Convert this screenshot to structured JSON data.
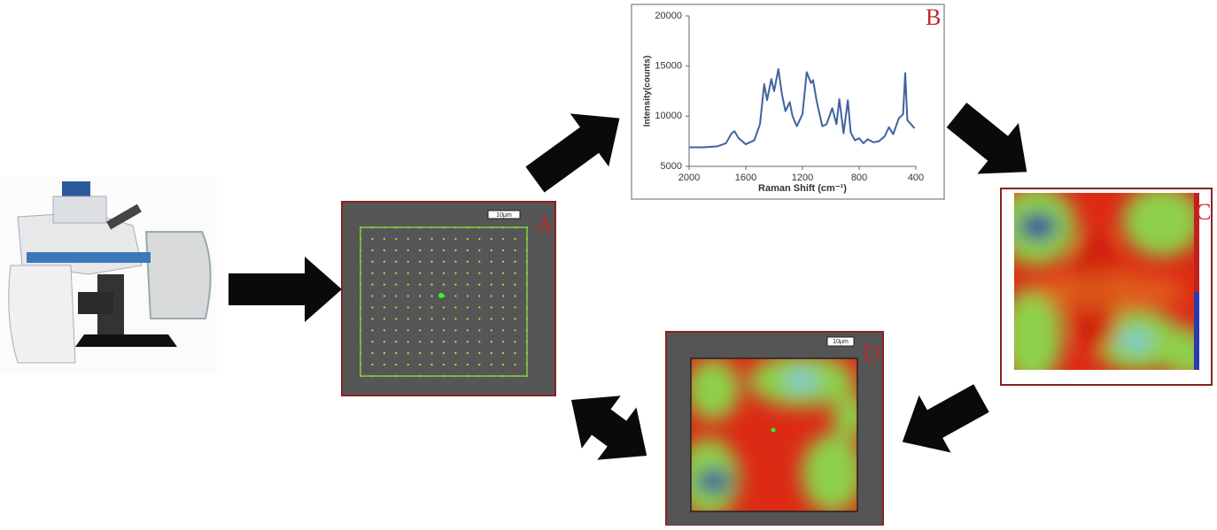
{
  "panels": {
    "a": {
      "label": "A",
      "scale_bar": "10µm"
    },
    "b": {
      "label": "B",
      "chart": {
        "type": "line",
        "xlabel": "Raman Shift (cm⁻¹)",
        "ylabel": "Intensity(counts)",
        "xlim": [
          2000,
          400
        ],
        "ylim": [
          5000,
          20000
        ],
        "xticks": [
          2000,
          1600,
          1200,
          800,
          400
        ],
        "yticks": [
          5000,
          10000,
          15000,
          20000
        ],
        "color": "#3f63a0",
        "x": [
          2000,
          1900,
          1800,
          1740,
          1700,
          1680,
          1650,
          1600,
          1540,
          1500,
          1470,
          1450,
          1420,
          1400,
          1370,
          1345,
          1320,
          1290,
          1270,
          1240,
          1200,
          1170,
          1140,
          1125,
          1100,
          1060,
          1030,
          990,
          960,
          940,
          910,
          880,
          860,
          830,
          800,
          770,
          740,
          700,
          660,
          620,
          590,
          560,
          520,
          490,
          475,
          460,
          440,
          410
        ],
        "values": [
          6900,
          6900,
          7000,
          7300,
          8300,
          8500,
          7800,
          7200,
          7600,
          9200,
          13200,
          11600,
          13700,
          12500,
          14700,
          12200,
          10500,
          11400,
          10000,
          9000,
          10200,
          14400,
          13300,
          13600,
          11500,
          9000,
          9200,
          10800,
          9200,
          11700,
          8300,
          11600,
          8400,
          7600,
          7800,
          7300,
          7700,
          7400,
          7500,
          8000,
          8900,
          8200,
          9800,
          10200,
          14300,
          9600,
          9300,
          8800
        ]
      }
    },
    "c": {
      "label": "C"
    },
    "d": {
      "label": "D",
      "scale_bar": "10µm"
    }
  }
}
